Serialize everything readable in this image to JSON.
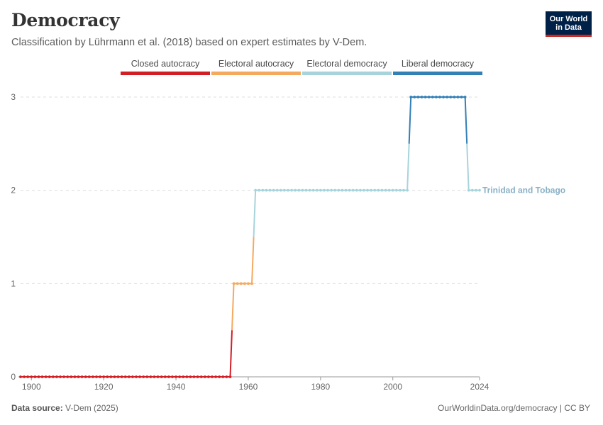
{
  "header": {
    "title": "Democracy",
    "subtitle": "Classification by Lührmann et al. (2018) based on expert estimates by V-Dem."
  },
  "logo": {
    "line1": "Our World",
    "line2": "in Data"
  },
  "footer": {
    "source_label": "Data source:",
    "source_value": "V-Dem (2025)",
    "right": "OurWorldinData.org/democracy | CC BY"
  },
  "chart_data": {
    "type": "line",
    "title": "Democracy",
    "subtitle": "Classification by Lührmann et al. (2018) based on expert estimates by V-Dem.",
    "x_ticks": [
      1900,
      1920,
      1940,
      1960,
      1980,
      2000,
      2024
    ],
    "y_ticks": [
      0,
      1,
      2,
      3
    ],
    "xlim": [
      1897,
      2024
    ],
    "ylim": [
      0,
      3
    ],
    "grid": "horizontal dashed",
    "legend": {
      "placement": "top",
      "items": [
        {
          "label": "Closed autocracy",
          "value": 0,
          "color": "#d21f26"
        },
        {
          "label": "Electoral autocracy",
          "value": 1,
          "color": "#f5a95f"
        },
        {
          "label": "Electoral democracy",
          "value": 2,
          "color": "#a7d4dc"
        },
        {
          "label": "Liberal democracy",
          "value": 3,
          "color": "#3380b6"
        }
      ]
    },
    "series": [
      {
        "name": "Trinidad and Tobago",
        "label_color": "#8ab0c6",
        "segments": [
          {
            "from": 1897,
            "to": 1955,
            "value": 0
          },
          {
            "from": 1956,
            "to": 1961,
            "value": 1
          },
          {
            "from": 1962,
            "to": 2004,
            "value": 2
          },
          {
            "from": 2005,
            "to": 2020,
            "value": 3
          },
          {
            "from": 2021,
            "to": 2024,
            "value": 2
          }
        ]
      }
    ]
  }
}
